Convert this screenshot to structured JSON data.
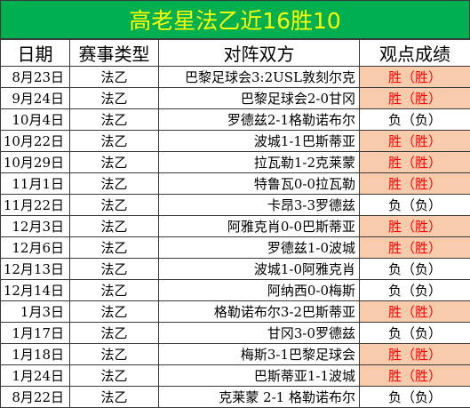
{
  "title": "高老星法乙近16胜10",
  "headers": {
    "date": "日期",
    "competition": "赛事类型",
    "match": "对阵双方",
    "view": "观点成绩"
  },
  "rows": [
    {
      "date": "8月23日",
      "competition": "法乙",
      "match": "巴黎足球会3:2USL敦刻尔克",
      "view": "胜（胜）",
      "result": "win"
    },
    {
      "date": "9月24日",
      "competition": "法乙",
      "match": "巴黎足球会2-0甘冈",
      "view": "胜（胜）",
      "result": "win"
    },
    {
      "date": "10月4日",
      "competition": "法乙",
      "match": "罗德兹2-1格勒诺布尔",
      "view": "负（负）",
      "result": "loss"
    },
    {
      "date": "10月22日",
      "competition": "法乙",
      "match": "波城1-1巴斯蒂亚",
      "view": "胜（胜）",
      "result": "win"
    },
    {
      "date": "10月29日",
      "competition": "法乙",
      "match": "拉瓦勒1-2克莱蒙",
      "view": "胜（胜）",
      "result": "win"
    },
    {
      "date": "11月1日",
      "competition": "法乙",
      "match": "特鲁瓦0-0拉瓦勒",
      "view": "胜（胜）",
      "result": "win"
    },
    {
      "date": "11月22日",
      "competition": "法乙",
      "match": "卡昂3-3罗德兹",
      "view": "负（负）",
      "result": "loss"
    },
    {
      "date": "12月3日",
      "competition": "法乙",
      "match": "阿雅克肖0-0巴斯蒂亚",
      "view": "胜（胜）",
      "result": "win"
    },
    {
      "date": "12月6日",
      "competition": "法乙",
      "match": "罗德兹1-0波城",
      "view": "胜（胜）",
      "result": "win"
    },
    {
      "date": "12月13日",
      "competition": "法乙",
      "match": "波城1-0阿雅克肖",
      "view": "负（负）",
      "result": "loss"
    },
    {
      "date": "12月14日",
      "competition": "法乙",
      "match": "阿纳西0-0梅斯",
      "view": "负（负）",
      "result": "loss"
    },
    {
      "date": "1月3日",
      "competition": "法乙",
      "match": "格勒诺布尔3-2巴斯蒂亚",
      "view": "胜（胜）",
      "result": "win"
    },
    {
      "date": "1月17日",
      "competition": "法乙",
      "match": "甘冈3-0罗德兹",
      "view": "负（负）",
      "result": "loss"
    },
    {
      "date": "1月18日",
      "competition": "法乙",
      "match": "梅斯3-1巴黎足球会",
      "view": "胜（胜）",
      "result": "win"
    },
    {
      "date": "1月24日",
      "competition": "法乙",
      "match": "巴斯蒂亚1-1波城",
      "view": "胜（胜）",
      "result": "win"
    },
    {
      "date": "8月22日",
      "competition": "法乙",
      "match": "克莱蒙 2-1 格勒诺布尔",
      "view": "负（负）",
      "result": "loss"
    }
  ],
  "colors": {
    "title_bg": "#00b050",
    "title_text": "#ffff00",
    "win_bg": "#f8cbad",
    "win_text": "#ff0000"
  }
}
